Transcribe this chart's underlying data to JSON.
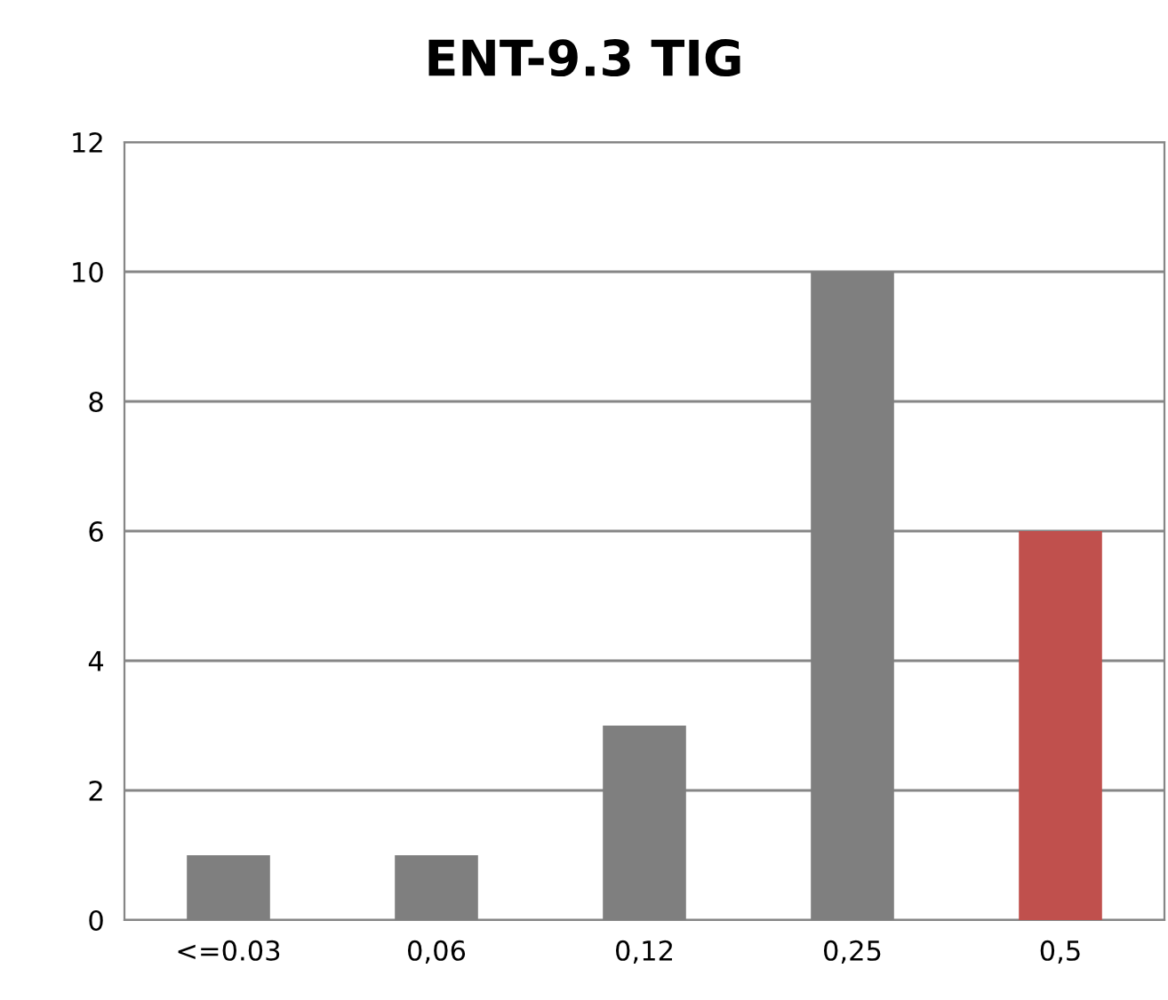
{
  "chart_data": {
    "type": "bar",
    "title": "ENT-9.3 TIG",
    "categories": [
      "<=0.03",
      "0,06",
      "0,12",
      "0,25",
      "0,5"
    ],
    "values": [
      1,
      1,
      3,
      10,
      6
    ],
    "colors": [
      "#7f7f7f",
      "#7f7f7f",
      "#7f7f7f",
      "#7f7f7f",
      "#c0504d"
    ],
    "ylim": [
      0,
      12
    ],
    "yticks": [
      0,
      2,
      4,
      6,
      8,
      10,
      12
    ],
    "grid": "y",
    "legend": false
  }
}
